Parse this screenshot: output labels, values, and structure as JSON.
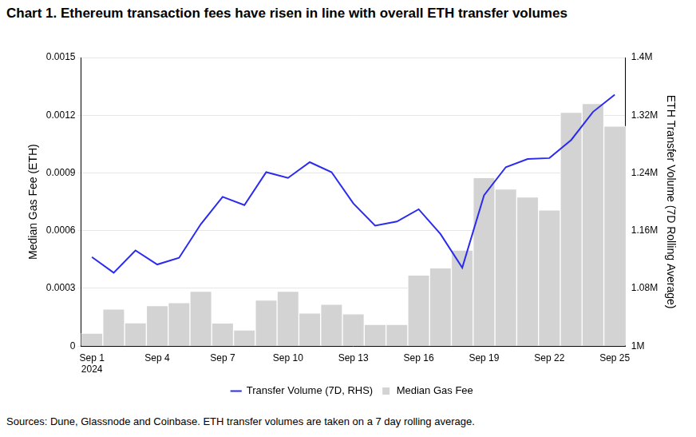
{
  "chart_data": {
    "type": "bar",
    "title": "Chart 1. Ethereum transaction fees have risen in line with overall ETH transfer volumes",
    "caption": "Sources: Dune, Glassnode and Coinbase. ETH transfer volumes are taken on a 7 day rolling average.",
    "y_label": "Median Gas Fee (ETH)",
    "y2_label": "ETH Transfer Volume (7D Rolling Average)",
    "categories": [
      [
        "Sep 1",
        "2024"
      ],
      null,
      null,
      "Sep 4",
      null,
      null,
      "Sep 7",
      null,
      null,
      "Sep 10",
      null,
      null,
      "Sep 13",
      null,
      null,
      "Sep 16",
      null,
      null,
      "Sep 19",
      null,
      null,
      "Sep 22",
      null,
      null,
      "Sep 25"
    ],
    "series": [
      {
        "name": "Median Gas Fee",
        "type": "bar",
        "color": "#d3d3d3",
        "values": [
          6.7e-05,
          0.000193,
          0.000121,
          0.00021,
          0.000226,
          0.000285,
          0.00012,
          8.4e-05,
          0.000239,
          0.000285,
          0.000172,
          0.000218,
          0.000168,
          0.000113,
          0.000113,
          0.000369,
          0.000406,
          0.000499,
          0.000876,
          0.000817,
          0.000775,
          0.000708,
          0.001215,
          0.001261,
          0.001144
        ]
      },
      {
        "name": "Transfer Volume (7D, RHS)",
        "type": "line",
        "axis": "y2",
        "color": "#2b2bf0",
        "marker": "none",
        "values": [
          1123400,
          1101700,
          1132600,
          1113100,
          1122300,
          1169100,
          1206900,
          1195400,
          1241100,
          1233100,
          1254900,
          1241100,
          1197700,
          1166900,
          1172600,
          1189700,
          1155400,
          1108600,
          1209100,
          1248000,
          1259400,
          1260600,
          1285700,
          1324600,
          1348600
        ]
      }
    ],
    "ylim": [
      0,
      0.0015
    ],
    "yticks": [
      0,
      0.0003,
      0.0006,
      0.0009,
      0.0012,
      0.0015
    ],
    "y2lim": [
      1000000,
      1400000
    ],
    "y2ticks": [
      {
        "value": 1000000,
        "label": "1M"
      },
      {
        "value": 1080000,
        "label": "1.08M"
      },
      {
        "value": 1160000,
        "label": "1.16M"
      },
      {
        "value": 1240000,
        "label": "1.24M"
      },
      {
        "value": 1320000,
        "label": "1.32M"
      },
      {
        "value": 1400000,
        "label": "1.4M"
      }
    ],
    "grid": true,
    "legend": "bottom"
  }
}
